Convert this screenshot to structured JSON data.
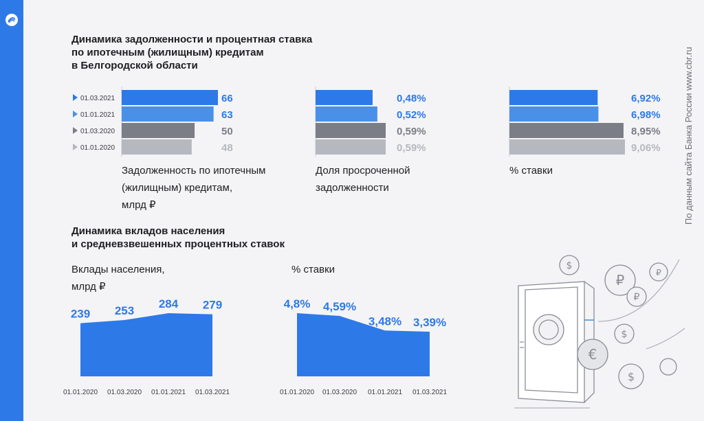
{
  "titles": {
    "mortgage": [
      "Динамика задолженности и процентная ставка",
      "по ипотечным (жилищным) кредитам",
      "в Белгородской области"
    ],
    "deposits": [
      "Динамика вкладов населения",
      "и средневзвешенных процентных ставок"
    ]
  },
  "source_note": "По данным сайта Банка России www.cbr.ru",
  "colors": {
    "accent_blue": "#2e79e8",
    "light_blue": "#4a90e8",
    "dark_gray": "#7b7d87",
    "light_gray": "#b6b8bf",
    "blue_text": "#2e79e8"
  },
  "chart_data": [
    {
      "type": "bar",
      "orientation": "horizontal",
      "categories": [
        "01.03.2021",
        "01.01.2021",
        "01.03.2020",
        "01.01.2020"
      ],
      "values": [
        66,
        63,
        50,
        48
      ],
      "value_labels": [
        "66",
        "63",
        "50",
        "48"
      ],
      "xlabel": [
        "Задолженность по ипотечным",
        "(жилищным) кредитам,",
        "млрд ₽"
      ],
      "xlim": [
        0,
        66
      ]
    },
    {
      "type": "bar",
      "orientation": "horizontal",
      "categories": [
        "01.03.2021",
        "01.01.2021",
        "01.03.2020",
        "01.01.2020"
      ],
      "values": [
        0.48,
        0.52,
        0.59,
        0.59
      ],
      "value_labels": [
        "0,48%",
        "0,52%",
        "0,59%",
        "0,59%"
      ],
      "xlabel": [
        "Доля просроченной",
        "задолженности"
      ],
      "xlim": [
        0,
        0.59
      ]
    },
    {
      "type": "bar",
      "orientation": "horizontal",
      "categories": [
        "01.03.2021",
        "01.01.2021",
        "01.03.2020",
        "01.01.2020"
      ],
      "values": [
        6.92,
        6.98,
        8.95,
        9.06
      ],
      "value_labels": [
        "6,92%",
        "6,98%",
        "8,95%",
        "9,06%"
      ],
      "xlabel": [
        "% ставки"
      ],
      "xlim": [
        0,
        9.06
      ]
    },
    {
      "type": "area",
      "x": [
        "01.01.2020",
        "01.03.2020",
        "01.01.2021",
        "01.03.2021"
      ],
      "values": [
        239,
        253,
        284,
        279
      ],
      "value_labels": [
        "239",
        "253",
        "284",
        "279"
      ],
      "ylabel": [
        "Вклады населения,",
        "млрд ₽"
      ],
      "ylim": [
        0,
        284
      ]
    },
    {
      "type": "area",
      "x": [
        "01.01.2020",
        "01.03.2020",
        "01.01.2021",
        "01.03.2021"
      ],
      "values": [
        4.8,
        4.59,
        3.48,
        3.39
      ],
      "value_labels": [
        "4,8%",
        "4,59%",
        "3,48%",
        "3,39%"
      ],
      "ylabel": [
        "% ставки"
      ],
      "ylim": [
        0,
        4.8
      ]
    }
  ]
}
